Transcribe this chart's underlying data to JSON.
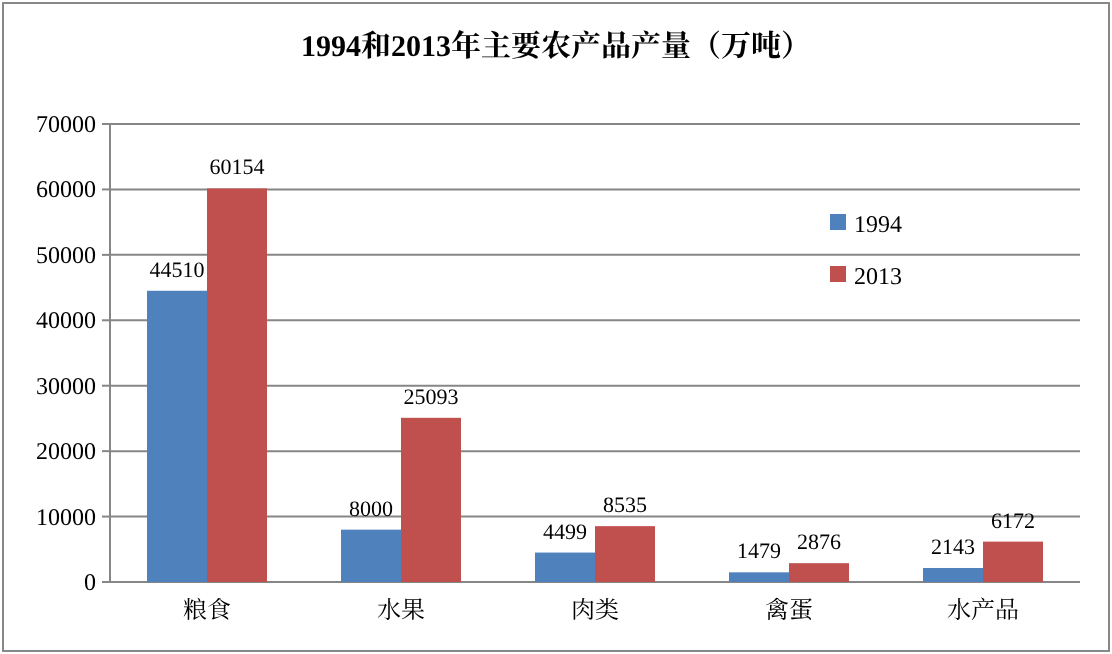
{
  "chart_data": {
    "type": "bar",
    "title": "1994和2013年主要农产品产量（万吨）",
    "categories": [
      "粮食",
      "水果",
      "肉类",
      "禽蛋",
      "水产品"
    ],
    "series": [
      {
        "name": "1994",
        "color": "#4f81bd",
        "values": [
          44510,
          8000,
          4499,
          1479,
          2143
        ]
      },
      {
        "name": "2013",
        "color": "#c0504d",
        "values": [
          60154,
          25093,
          8535,
          2876,
          6172
        ]
      }
    ],
    "ylim": [
      0,
      70000
    ],
    "yticks": [
      0,
      10000,
      20000,
      30000,
      40000,
      50000,
      60000,
      70000
    ],
    "grid": "y",
    "legend": "right",
    "data_labels": true
  }
}
